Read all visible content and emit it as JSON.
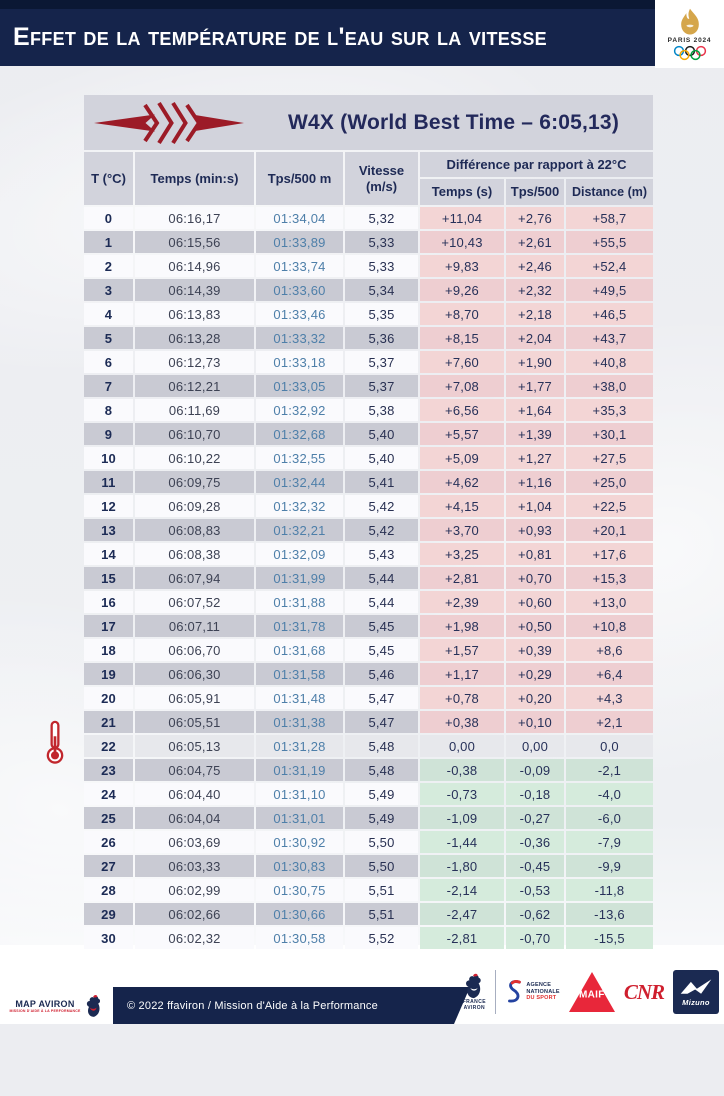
{
  "header": {
    "title": "Effet de la température de l'eau sur la vitesse"
  },
  "paris2024": {
    "label": "PARIS 2024"
  },
  "table": {
    "title": "W4X (World Best Time – 6:05,13)",
    "columns": {
      "t": "T (°C)",
      "temps": "Temps (min:s)",
      "tps500": "Tps/500 m",
      "vitesse": "Vitesse (m/s)",
      "group": "Différence par rapport à 22°C",
      "diff_temps": "Temps (s)",
      "diff_tps500": "Tps/500",
      "diff_distance": "Distance (m)"
    },
    "reference_temp": "22",
    "rows": [
      {
        "t": "0",
        "temps": "06:16,17",
        "tps500": "01:34,04",
        "vitesse": "5,32",
        "dt": "+11,04",
        "dtps": "+2,76",
        "dd": "+58,7"
      },
      {
        "t": "1",
        "temps": "06:15,56",
        "tps500": "01:33,89",
        "vitesse": "5,33",
        "dt": "+10,43",
        "dtps": "+2,61",
        "dd": "+55,5"
      },
      {
        "t": "2",
        "temps": "06:14,96",
        "tps500": "01:33,74",
        "vitesse": "5,33",
        "dt": "+9,83",
        "dtps": "+2,46",
        "dd": "+52,4"
      },
      {
        "t": "3",
        "temps": "06:14,39",
        "tps500": "01:33,60",
        "vitesse": "5,34",
        "dt": "+9,26",
        "dtps": "+2,32",
        "dd": "+49,5"
      },
      {
        "t": "4",
        "temps": "06:13,83",
        "tps500": "01:33,46",
        "vitesse": "5,35",
        "dt": "+8,70",
        "dtps": "+2,18",
        "dd": "+46,5"
      },
      {
        "t": "5",
        "temps": "06:13,28",
        "tps500": "01:33,32",
        "vitesse": "5,36",
        "dt": "+8,15",
        "dtps": "+2,04",
        "dd": "+43,7"
      },
      {
        "t": "6",
        "temps": "06:12,73",
        "tps500": "01:33,18",
        "vitesse": "5,37",
        "dt": "+7,60",
        "dtps": "+1,90",
        "dd": "+40,8"
      },
      {
        "t": "7",
        "temps": "06:12,21",
        "tps500": "01:33,05",
        "vitesse": "5,37",
        "dt": "+7,08",
        "dtps": "+1,77",
        "dd": "+38,0"
      },
      {
        "t": "8",
        "temps": "06:11,69",
        "tps500": "01:32,92",
        "vitesse": "5,38",
        "dt": "+6,56",
        "dtps": "+1,64",
        "dd": "+35,3"
      },
      {
        "t": "9",
        "temps": "06:10,70",
        "tps500": "01:32,68",
        "vitesse": "5,40",
        "dt": "+5,57",
        "dtps": "+1,39",
        "dd": "+30,1"
      },
      {
        "t": "10",
        "temps": "06:10,22",
        "tps500": "01:32,55",
        "vitesse": "5,40",
        "dt": "+5,09",
        "dtps": "+1,27",
        "dd": "+27,5"
      },
      {
        "t": "11",
        "temps": "06:09,75",
        "tps500": "01:32,44",
        "vitesse": "5,41",
        "dt": "+4,62",
        "dtps": "+1,16",
        "dd": "+25,0"
      },
      {
        "t": "12",
        "temps": "06:09,28",
        "tps500": "01:32,32",
        "vitesse": "5,42",
        "dt": "+4,15",
        "dtps": "+1,04",
        "dd": "+22,5"
      },
      {
        "t": "13",
        "temps": "06:08,83",
        "tps500": "01:32,21",
        "vitesse": "5,42",
        "dt": "+3,70",
        "dtps": "+0,93",
        "dd": "+20,1"
      },
      {
        "t": "14",
        "temps": "06:08,38",
        "tps500": "01:32,09",
        "vitesse": "5,43",
        "dt": "+3,25",
        "dtps": "+0,81",
        "dd": "+17,6"
      },
      {
        "t": "15",
        "temps": "06:07,94",
        "tps500": "01:31,99",
        "vitesse": "5,44",
        "dt": "+2,81",
        "dtps": "+0,70",
        "dd": "+15,3"
      },
      {
        "t": "16",
        "temps": "06:07,52",
        "tps500": "01:31,88",
        "vitesse": "5,44",
        "dt": "+2,39",
        "dtps": "+0,60",
        "dd": "+13,0"
      },
      {
        "t": "17",
        "temps": "06:07,11",
        "tps500": "01:31,78",
        "vitesse": "5,45",
        "dt": "+1,98",
        "dtps": "+0,50",
        "dd": "+10,8"
      },
      {
        "t": "18",
        "temps": "06:06,70",
        "tps500": "01:31,68",
        "vitesse": "5,45",
        "dt": "+1,57",
        "dtps": "+0,39",
        "dd": "+8,6"
      },
      {
        "t": "19",
        "temps": "06:06,30",
        "tps500": "01:31,58",
        "vitesse": "5,46",
        "dt": "+1,17",
        "dtps": "+0,29",
        "dd": "+6,4"
      },
      {
        "t": "20",
        "temps": "06:05,91",
        "tps500": "01:31,48",
        "vitesse": "5,47",
        "dt": "+0,78",
        "dtps": "+0,20",
        "dd": "+4,3"
      },
      {
        "t": "21",
        "temps": "06:05,51",
        "tps500": "01:31,38",
        "vitesse": "5,47",
        "dt": "+0,38",
        "dtps": "+0,10",
        "dd": "+2,1"
      },
      {
        "t": "22",
        "temps": "06:05,13",
        "tps500": "01:31,28",
        "vitesse": "5,48",
        "dt": "0,00",
        "dtps": "0,00",
        "dd": "0,0"
      },
      {
        "t": "23",
        "temps": "06:04,75",
        "tps500": "01:31,19",
        "vitesse": "5,48",
        "dt": "-0,38",
        "dtps": "-0,09",
        "dd": "-2,1"
      },
      {
        "t": "24",
        "temps": "06:04,40",
        "tps500": "01:31,10",
        "vitesse": "5,49",
        "dt": "-0,73",
        "dtps": "-0,18",
        "dd": "-4,0"
      },
      {
        "t": "25",
        "temps": "06:04,04",
        "tps500": "01:31,01",
        "vitesse": "5,49",
        "dt": "-1,09",
        "dtps": "-0,27",
        "dd": "-6,0"
      },
      {
        "t": "26",
        "temps": "06:03,69",
        "tps500": "01:30,92",
        "vitesse": "5,50",
        "dt": "-1,44",
        "dtps": "-0,36",
        "dd": "-7,9"
      },
      {
        "t": "27",
        "temps": "06:03,33",
        "tps500": "01:30,83",
        "vitesse": "5,50",
        "dt": "-1,80",
        "dtps": "-0,45",
        "dd": "-9,9"
      },
      {
        "t": "28",
        "temps": "06:02,99",
        "tps500": "01:30,75",
        "vitesse": "5,51",
        "dt": "-2,14",
        "dtps": "-0,53",
        "dd": "-11,8"
      },
      {
        "t": "29",
        "temps": "06:02,66",
        "tps500": "01:30,66",
        "vitesse": "5,51",
        "dt": "-2,47",
        "dtps": "-0,62",
        "dd": "-13,6"
      },
      {
        "t": "30",
        "temps": "06:02,32",
        "tps500": "01:30,58",
        "vitesse": "5,52",
        "dt": "-2,81",
        "dtps": "-0,70",
        "dd": "-15,5"
      }
    ]
  },
  "footer": {
    "copyright": "© 2022 ffaviron / Mission d'Aide à la Performance",
    "map_aviron": {
      "name": "MAP AVIRON",
      "tagline": "MISSION D'AIDE À LA PERFORMANCE"
    },
    "sponsors": {
      "france_aviron_line1": "FRANCE",
      "france_aviron_line2": "AVIRON",
      "ans_line1": "AGENCE",
      "ans_line2": "NATIONALE",
      "ans_line3": "DU SPORT",
      "maif": "MAIF",
      "cnr": "CNR",
      "mizuno": "Mizuno"
    }
  },
  "colors": {
    "navy": "#15244b",
    "table_gray": "#d2d3dc",
    "row_gray": "#c9cad3",
    "pink": "#f3d5d5",
    "green": "#d5ebdc",
    "logo_red": "#9c1b27",
    "gold": "#d5a64b"
  }
}
